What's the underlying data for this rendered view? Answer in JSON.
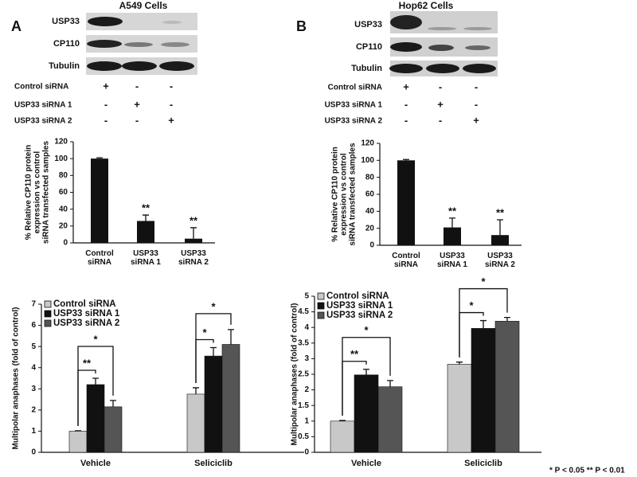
{
  "panels": [
    {
      "letter": "A",
      "title": "A549 Cells",
      "bands": [
        "USP33",
        "CP110",
        "Tubulin"
      ],
      "conditions": [
        {
          "name": "Control siRNA",
          "signs": [
            "+",
            "-",
            "-"
          ]
        },
        {
          "name": "USP33 siRNA 1",
          "signs": [
            "-",
            "+",
            "-"
          ]
        },
        {
          "name": "USP33 siRNA 2",
          "signs": [
            "-",
            "-",
            "+"
          ]
        }
      ]
    },
    {
      "letter": "B",
      "title": "Hop62 Cells",
      "bands": [
        "USP33",
        "CP110",
        "Tubulin"
      ],
      "conditions": [
        {
          "name": "Control siRNA",
          "signs": [
            "+",
            "-",
            "-"
          ]
        },
        {
          "name": "USP33 siRNA 1",
          "signs": [
            "-",
            "+",
            "-"
          ]
        },
        {
          "name": "USP33 siRNA 2",
          "signs": [
            "-",
            "-",
            "+"
          ]
        }
      ]
    }
  ],
  "footnote": "* P < 0.05  ** P < 0.01",
  "chart_data": [
    {
      "type": "bar",
      "ylabel": [
        "% Relative CP110 protein",
        "expression vs control",
        "siRNA transfected samples"
      ],
      "categories": [
        "Control siRNA",
        "USP33 siRNA 1",
        "USP33 siRNA 2"
      ],
      "values": [
        100,
        26,
        5
      ],
      "errors": [
        1,
        7,
        13
      ],
      "significance": [
        null,
        "**",
        "**"
      ],
      "color": "#111111",
      "ylim": [
        0,
        120
      ],
      "yticks": [
        0,
        20,
        40,
        60,
        80,
        100,
        120
      ]
    },
    {
      "type": "bar",
      "ylabel": [
        "% Relative CP110 protein",
        "expression vs control",
        "siRNA transfected samples"
      ],
      "categories": [
        "Control siRNA",
        "USP33 siRNA 1",
        "USP33 siRNA 2"
      ],
      "values": [
        100,
        21,
        12
      ],
      "errors": [
        1,
        11,
        18
      ],
      "significance": [
        null,
        "**",
        "**"
      ],
      "color": "#111111",
      "ylim": [
        0,
        120
      ],
      "yticks": [
        0,
        20,
        40,
        60,
        80,
        100,
        120
      ]
    },
    {
      "type": "grouped_bar",
      "ylabel": [
        "Multipolar anaphases (fold of control)"
      ],
      "categories": [
        "Vehicle",
        "Seliciclib"
      ],
      "series": [
        {
          "name": "Control siRNA",
          "color": "#c8c8c8",
          "values": [
            1.0,
            2.75
          ],
          "errors": [
            0.02,
            0.3
          ]
        },
        {
          "name": "USP33 siRNA 1",
          "color": "#111111",
          "values": [
            3.2,
            4.55
          ],
          "errors": [
            0.3,
            0.4
          ],
          "significance": [
            "**",
            "*"
          ]
        },
        {
          "name": "USP33 siRNA 2",
          "color": "#555555",
          "values": [
            2.15,
            5.1
          ],
          "errors": [
            0.3,
            0.7
          ],
          "significance": [
            "*",
            "*"
          ]
        }
      ],
      "ylim": [
        0,
        7
      ],
      "yticks": [
        0,
        1,
        2,
        3,
        4,
        5,
        6,
        7
      ]
    },
    {
      "type": "grouped_bar",
      "ylabel": [
        "Multipolar anaphases (fold of control)"
      ],
      "categories": [
        "Vehicle",
        "Seliciclib"
      ],
      "series": [
        {
          "name": "Control siRNA",
          "color": "#c8c8c8",
          "values": [
            1.0,
            2.82
          ],
          "errors": [
            0.02,
            0.07
          ]
        },
        {
          "name": "USP33 siRNA 1",
          "color": "#111111",
          "values": [
            2.48,
            3.97
          ],
          "errors": [
            0.18,
            0.25
          ],
          "significance": [
            "**",
            "*"
          ]
        },
        {
          "name": "USP33 siRNA 2",
          "color": "#555555",
          "values": [
            2.1,
            4.2
          ],
          "errors": [
            0.2,
            0.12
          ],
          "significance": [
            "*",
            "*"
          ]
        }
      ],
      "ylim": [
        0,
        5
      ],
      "yticks": [
        0,
        0.5,
        1,
        1.5,
        2,
        2.5,
        3,
        3.5,
        4,
        4.5,
        5
      ]
    }
  ]
}
